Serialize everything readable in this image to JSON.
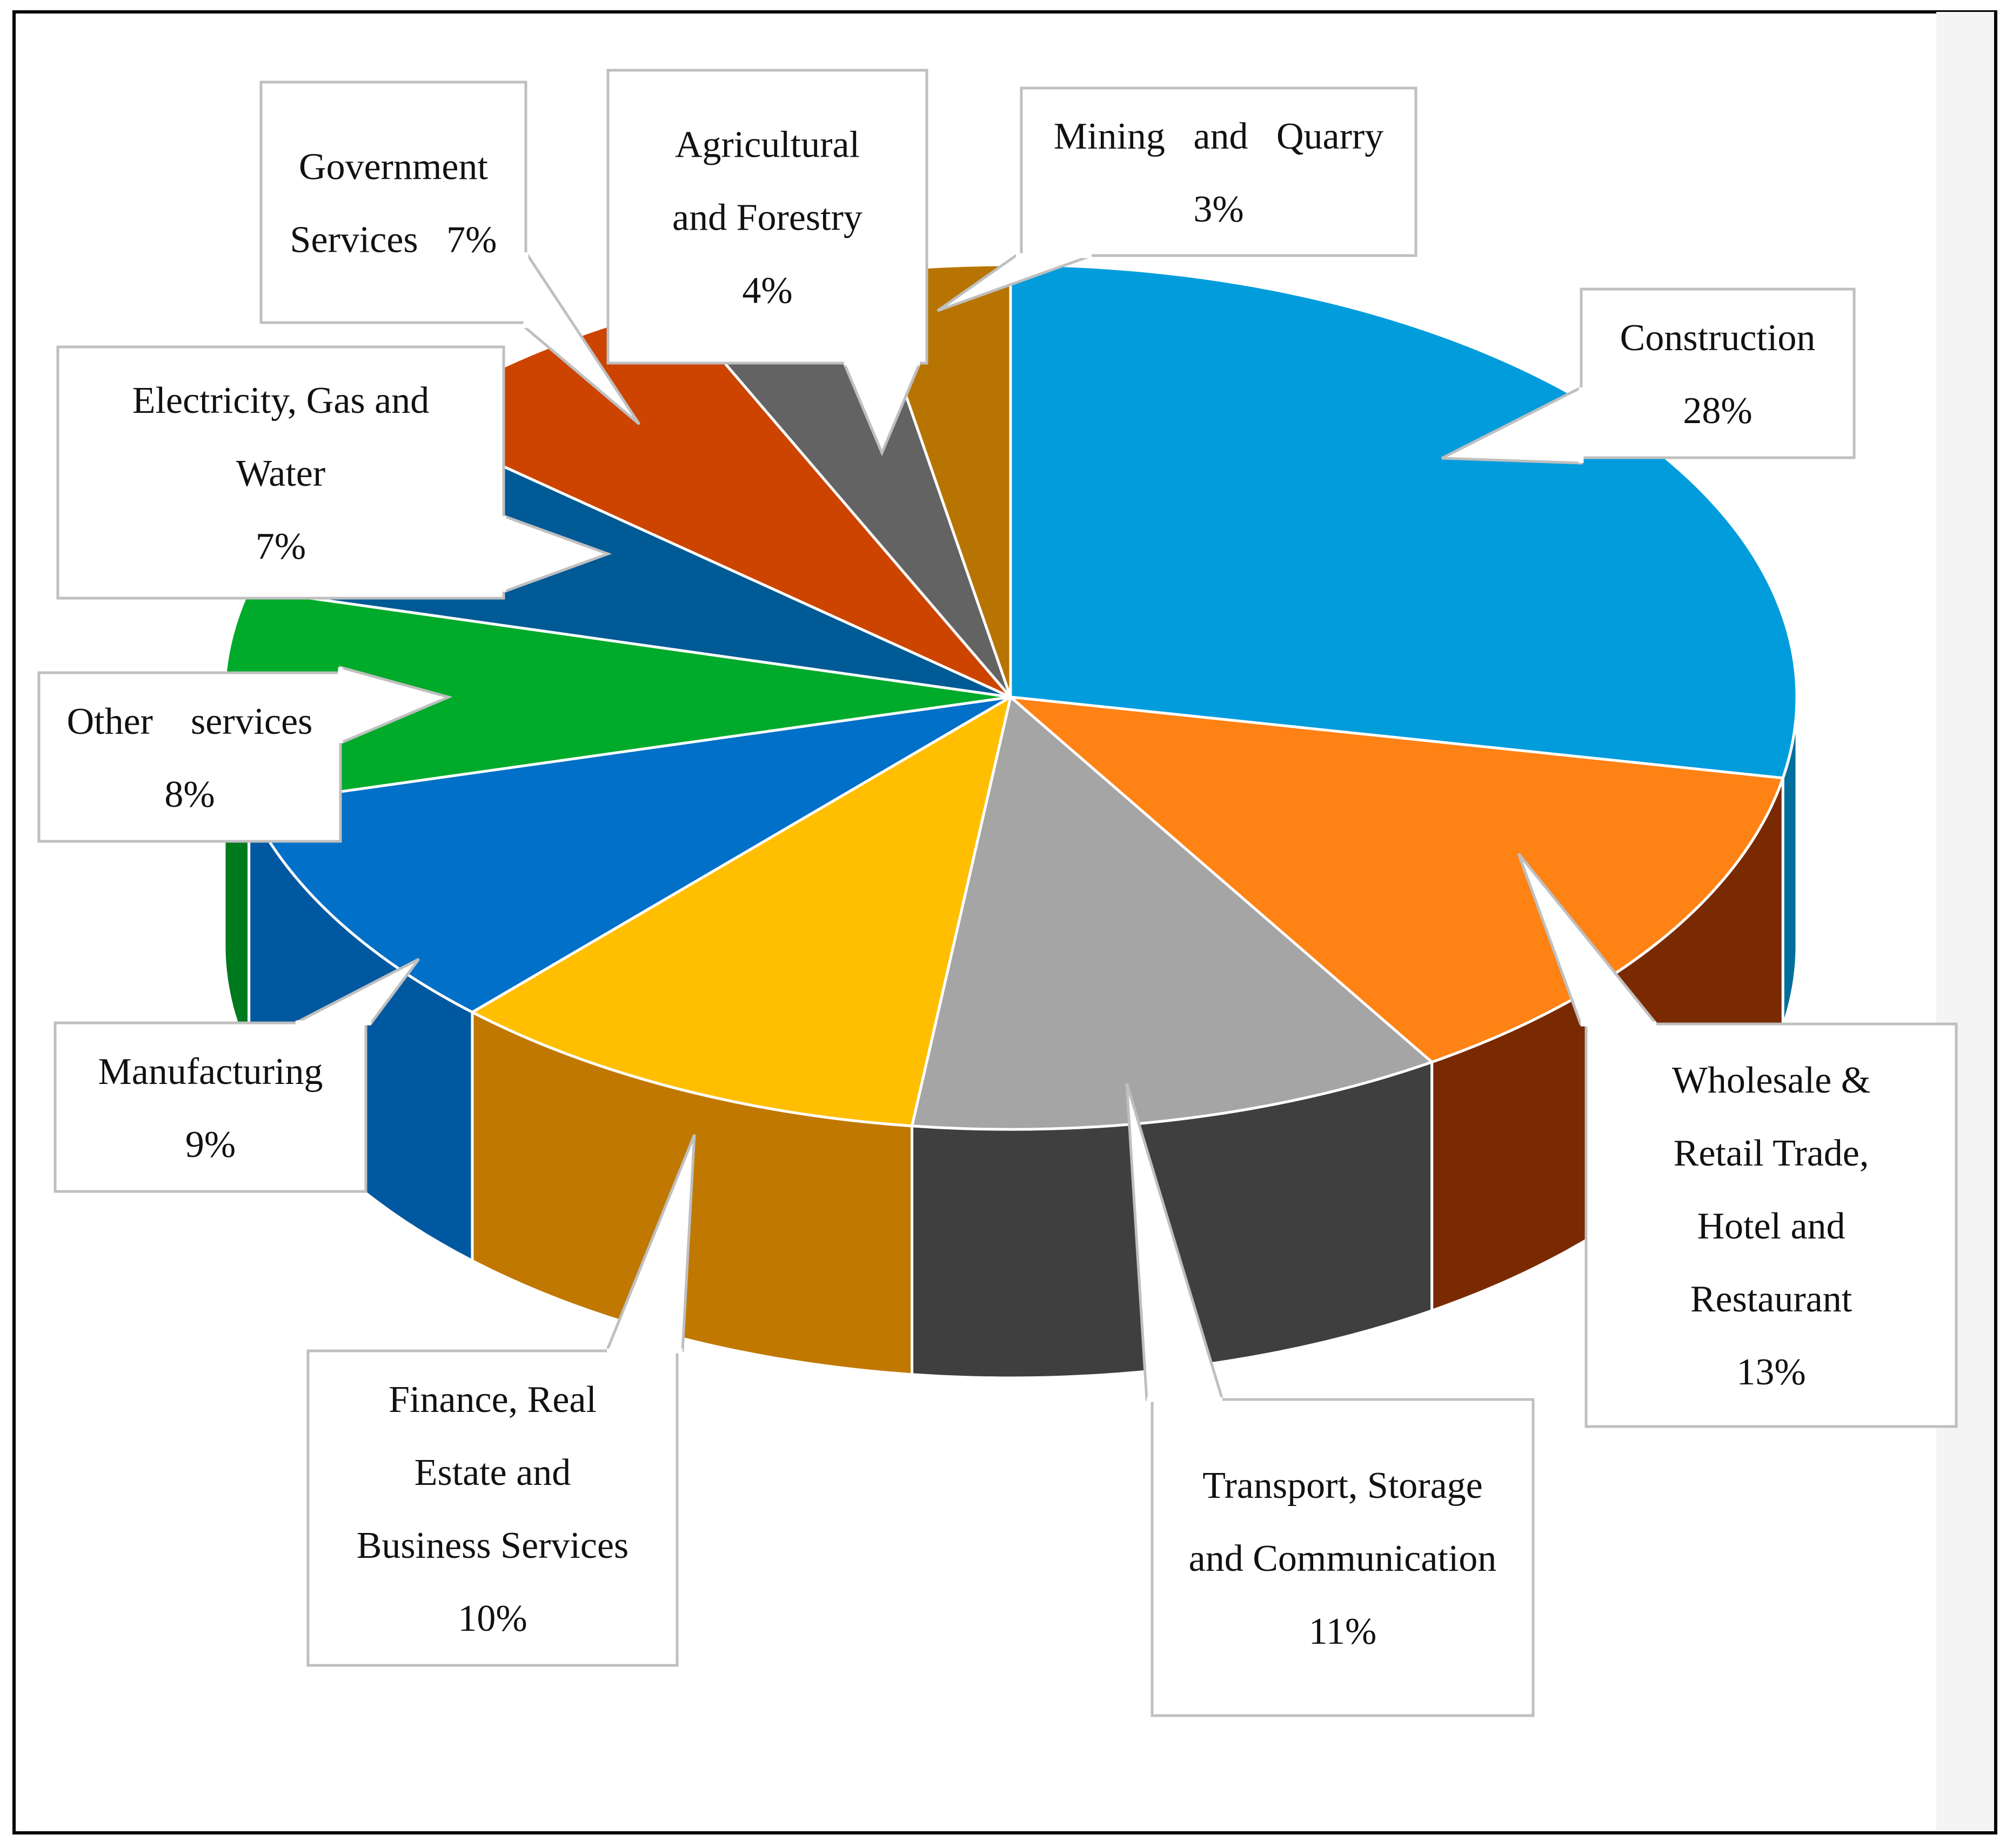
{
  "chart_data": {
    "type": "pie",
    "variant": "3d-pie",
    "title": "",
    "label_style": "callouts",
    "slices": [
      {
        "key": "construction",
        "lines": [
          "Construction",
          "28%"
        ],
        "value": 28,
        "color": "#009cdc",
        "side_color": "#006f9c"
      },
      {
        "key": "wholesale",
        "lines": [
          "Wholesale &",
          "Retail Trade,",
          "Hotel and",
          "Restaurant",
          "13%"
        ],
        "value": 13,
        "color": "#ff8214",
        "side_color": "#7a2a00"
      },
      {
        "key": "transport",
        "lines": [
          "Transport, Storage",
          "and Communication",
          "11%"
        ],
        "value": 11,
        "color": "#a5a5a5",
        "side_color": "#3f3f3f"
      },
      {
        "key": "finance",
        "lines": [
          "Finance, Real",
          "Estate and",
          "Business Services",
          "10%"
        ],
        "value": 10,
        "color": "#ffbf00",
        "side_color": "#c07800"
      },
      {
        "key": "manufacturing",
        "lines": [
          "Manufacturing",
          "9%"
        ],
        "value": 9,
        "color": "#0070c8",
        "side_color": "#0058a0"
      },
      {
        "key": "other",
        "lines": [
          "Other    services",
          "8%"
        ],
        "value": 8,
        "color": "#00aa2a",
        "side_color": "#007a1e"
      },
      {
        "key": "electricity",
        "lines": [
          "Electricity, Gas and",
          "Water",
          "7%"
        ],
        "value": 7,
        "color": "#005a96",
        "side_color": "#003e6a"
      },
      {
        "key": "government",
        "lines": [
          "Government",
          "Services   7%"
        ],
        "value": 7,
        "color": "#cc4400",
        "side_color": "#8a2c00"
      },
      {
        "key": "agricultural",
        "lines": [
          "Agricultural",
          "and Forestry",
          "4%"
        ],
        "value": 4,
        "color": "#636363",
        "side_color": "#3a3a3a"
      },
      {
        "key": "mining",
        "lines": [
          "Mining   and   Quarry",
          "3%"
        ],
        "value": 3,
        "color": "#b87400",
        "side_color": "#7c4e00"
      }
    ]
  }
}
